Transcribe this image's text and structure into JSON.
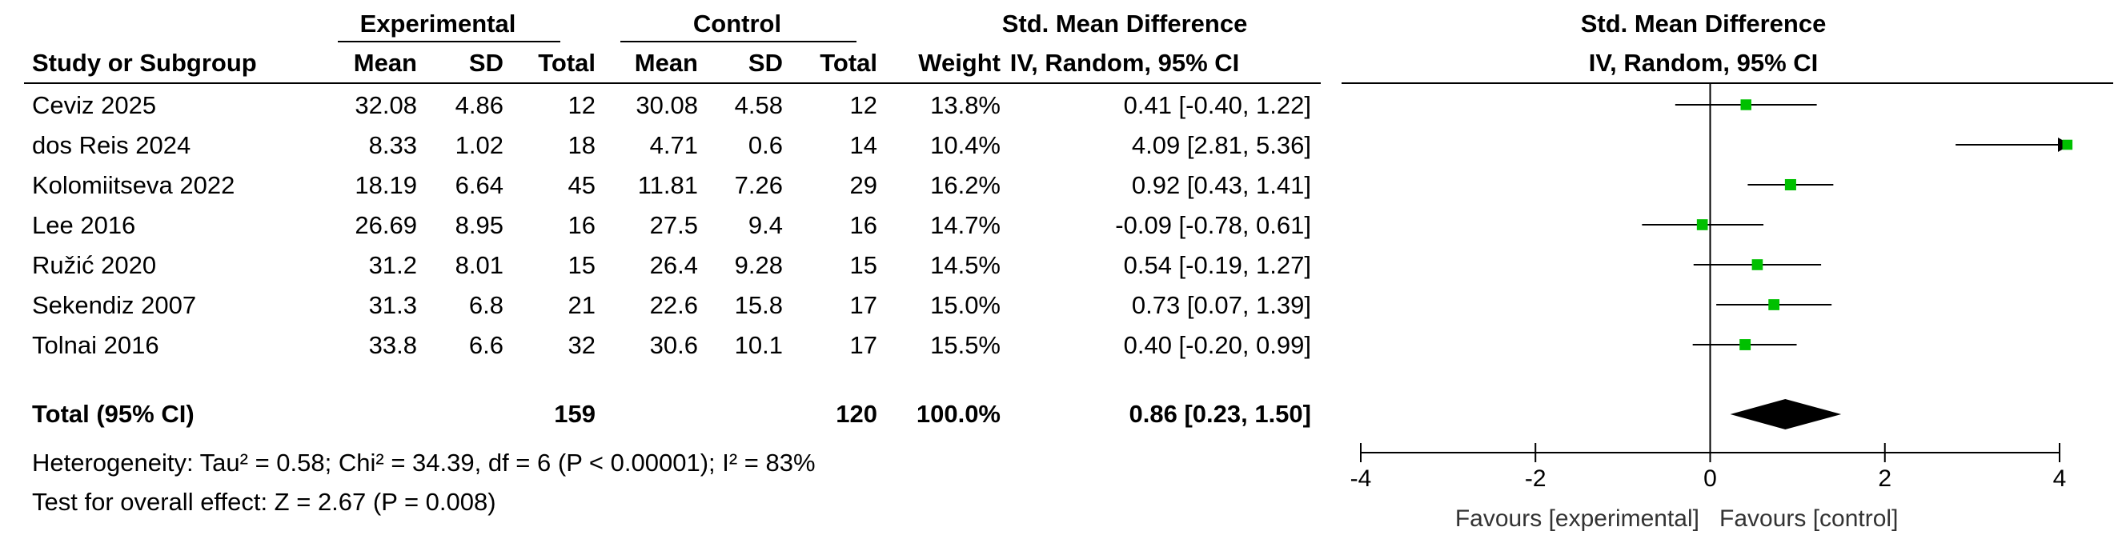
{
  "headers": {
    "experimental": "Experimental",
    "control": "Control",
    "smd_top": "Std. Mean Difference",
    "smd_sub": "IV, Random, 95% CI",
    "plot_top": "Std. Mean Difference",
    "plot_sub": "IV, Random, 95% CI",
    "study": "Study or Subgroup",
    "mean": "Mean",
    "sd": "SD",
    "total": "Total",
    "weight": "Weight"
  },
  "studies": [
    {
      "name": "Ceviz 2025",
      "e_mean": "32.08",
      "e_sd": "4.86",
      "e_total": "12",
      "c_mean": "30.08",
      "c_sd": "4.58",
      "c_total": "12",
      "weight": "13.8%",
      "ci_text": "0.41 [-0.40, 1.22]"
    },
    {
      "name": "dos Reis 2024",
      "e_mean": "8.33",
      "e_sd": "1.02",
      "e_total": "18",
      "c_mean": "4.71",
      "c_sd": "0.6",
      "c_total": "14",
      "weight": "10.4%",
      "ci_text": "4.09 [2.81, 5.36]"
    },
    {
      "name": "Kolomiitseva 2022",
      "e_mean": "18.19",
      "e_sd": "6.64",
      "e_total": "45",
      "c_mean": "11.81",
      "c_sd": "7.26",
      "c_total": "29",
      "weight": "16.2%",
      "ci_text": "0.92 [0.43, 1.41]"
    },
    {
      "name": "Lee 2016",
      "e_mean": "26.69",
      "e_sd": "8.95",
      "e_total": "16",
      "c_mean": "27.5",
      "c_sd": "9.4",
      "c_total": "16",
      "weight": "14.7%",
      "ci_text": "-0.09 [-0.78, 0.61]"
    },
    {
      "name": "Ružić 2020",
      "e_mean": "31.2",
      "e_sd": "8.01",
      "e_total": "15",
      "c_mean": "26.4",
      "c_sd": "9.28",
      "c_total": "15",
      "weight": "14.5%",
      "ci_text": "0.54 [-0.19, 1.27]"
    },
    {
      "name": "Sekendiz 2007",
      "e_mean": "31.3",
      "e_sd": "6.8",
      "e_total": "21",
      "c_mean": "22.6",
      "c_sd": "15.8",
      "c_total": "17",
      "weight": "15.0%",
      "ci_text": "0.73 [0.07, 1.39]"
    },
    {
      "name": "Tolnai 2016",
      "e_mean": "33.8",
      "e_sd": "6.6",
      "e_total": "32",
      "c_mean": "30.6",
      "c_sd": "10.1",
      "c_total": "17",
      "weight": "15.5%",
      "ci_text": "0.40 [-0.20, 0.99]"
    }
  ],
  "total": {
    "label": "Total (95% CI)",
    "e_total": "159",
    "c_total": "120",
    "weight": "100.0%",
    "ci_text": "0.86 [0.23, 1.50]"
  },
  "footer": {
    "heterogeneity": "Heterogeneity: Tau² = 0.58; Chi² = 34.39, df = 6 (P < 0.00001); I² = 83%",
    "overall": "Test for overall effect: Z = 2.67 (P = 0.008)"
  },
  "axis": {
    "favours_left": "Favours [experimental]",
    "favours_right": "Favours [control]"
  },
  "colors": {
    "marker": "#00c000",
    "diamond": "#000000"
  },
  "chart_data": {
    "type": "forest",
    "xlim": [
      -4,
      4
    ],
    "ticks": [
      -4,
      -2,
      0,
      2,
      4
    ],
    "tick_labels": [
      "-4",
      "-2",
      "0",
      "2",
      "4"
    ],
    "studies": [
      {
        "name": "Ceviz 2025",
        "smd": 0.41,
        "lo": -0.4,
        "hi": 1.22,
        "weight": 13.8
      },
      {
        "name": "dos Reis 2024",
        "smd": 4.09,
        "lo": 2.81,
        "hi": 5.36,
        "weight": 10.4
      },
      {
        "name": "Kolomiitseva 2022",
        "smd": 0.92,
        "lo": 0.43,
        "hi": 1.41,
        "weight": 16.2
      },
      {
        "name": "Lee 2016",
        "smd": -0.09,
        "lo": -0.78,
        "hi": 0.61,
        "weight": 14.7
      },
      {
        "name": "Ružić 2020",
        "smd": 0.54,
        "lo": -0.19,
        "hi": 1.27,
        "weight": 14.5
      },
      {
        "name": "Sekendiz 2007",
        "smd": 0.73,
        "lo": 0.07,
        "hi": 1.39,
        "weight": 15.0
      },
      {
        "name": "Tolnai 2016",
        "smd": 0.4,
        "lo": -0.2,
        "hi": 0.99,
        "weight": 15.5
      }
    ],
    "pooled": {
      "smd": 0.86,
      "lo": 0.23,
      "hi": 1.5
    }
  }
}
